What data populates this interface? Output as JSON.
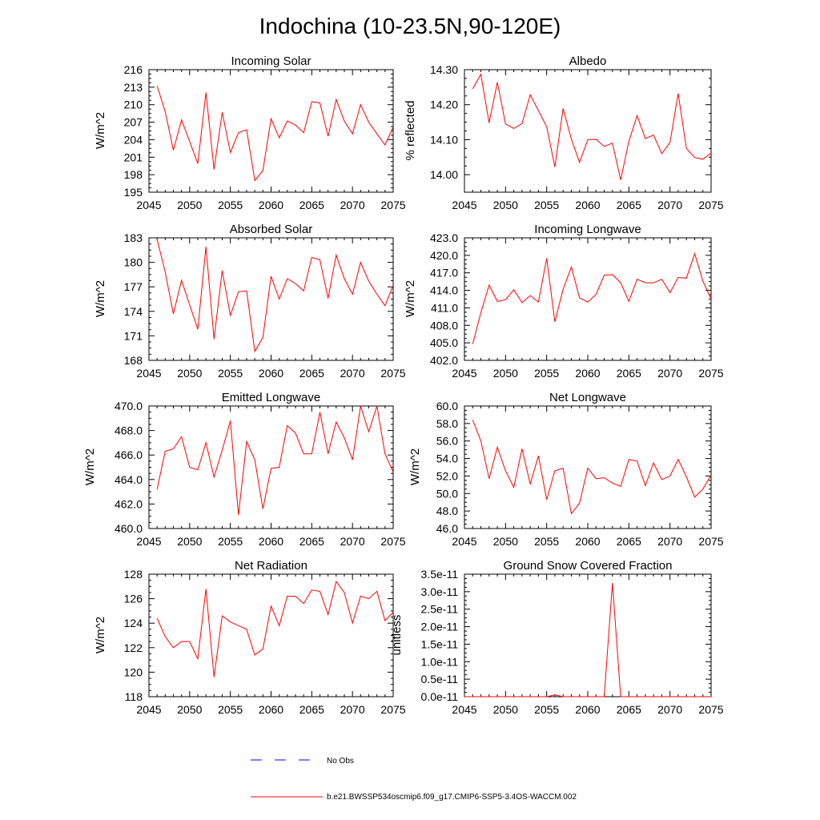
{
  "title": "Indochina (10-23.5N,90-120E)",
  "legend": {
    "obs_label": "No Obs",
    "obs_color": "#0000ff",
    "model_label": "b.e21.BWSSP534oscmip6.f09_g17.CMIP6-SSP5-3.4OS-WACCM.002",
    "model_color": "#ff0000"
  },
  "chart_data": [
    {
      "type": "line",
      "title": "Incoming Solar",
      "ylabel": "W/m^2",
      "xlim": [
        2045,
        2075
      ],
      "ylim": [
        195,
        216
      ],
      "xticks": [
        2045,
        2050,
        2055,
        2060,
        2065,
        2070,
        2075
      ],
      "xtick_labels": [
        "2045",
        "2050",
        "2055",
        "2060",
        "2065",
        "2070",
        "2075"
      ],
      "yticks": [
        195,
        198,
        201,
        204,
        207,
        210,
        213,
        216
      ],
      "ytick_labels": [
        "195",
        "198",
        "201",
        "204",
        "207",
        "210",
        "213",
        "216"
      ],
      "x": [
        2046,
        2047,
        2048,
        2049,
        2050,
        2051,
        2052,
        2053,
        2054,
        2055,
        2056,
        2057,
        2058,
        2059,
        2060,
        2061,
        2062,
        2063,
        2064,
        2065,
        2066,
        2067,
        2068,
        2069,
        2070,
        2071,
        2072,
        2073,
        2074,
        2075
      ],
      "series": [
        {
          "name": "b.e21.BWSSP534oscmip6.f09_g17.CMIP6-SSP5-3.4OS-WACCM.002",
          "values": [
            213.2,
            208.8,
            202.2,
            207.4,
            203.7,
            199.9,
            212.1,
            198.9,
            208.7,
            201.8,
            205.2,
            205.7,
            197.0,
            198.7,
            207.6,
            204.3,
            207.2,
            206.5,
            205.2,
            210.5,
            210.3,
            204.6,
            210.9,
            207.2,
            205.0,
            210.0,
            207.0,
            205.0,
            203.1,
            206.2
          ]
        }
      ]
    },
    {
      "type": "line",
      "title": "Albedo",
      "ylabel": "% reflected",
      "xlim": [
        2045,
        2075
      ],
      "ylim": [
        13.95,
        14.3
      ],
      "xticks": [
        2045,
        2050,
        2055,
        2060,
        2065,
        2070,
        2075
      ],
      "xtick_labels": [
        "2045",
        "2050",
        "2055",
        "2060",
        "2065",
        "2070",
        "2075"
      ],
      "yticks": [
        14.0,
        14.1,
        14.2,
        14.3
      ],
      "ytick_labels": [
        "14.00",
        "14.10",
        "14.20",
        "14.30"
      ],
      "x": [
        2046,
        2047,
        2048,
        2049,
        2050,
        2051,
        2052,
        2053,
        2054,
        2055,
        2056,
        2057,
        2058,
        2059,
        2060,
        2061,
        2062,
        2063,
        2064,
        2065,
        2066,
        2067,
        2068,
        2069,
        2070,
        2071,
        2072,
        2073,
        2074,
        2075
      ],
      "series": [
        {
          "name": "b.e21.BWSSP534oscmip6.f09_g17.CMIP6-SSP5-3.4OS-WACCM.002",
          "values": [
            14.245,
            14.287,
            14.148,
            14.264,
            14.145,
            14.132,
            14.146,
            14.228,
            14.183,
            14.137,
            14.022,
            14.189,
            14.102,
            14.035,
            14.1,
            14.101,
            14.081,
            14.09,
            13.985,
            14.095,
            14.169,
            14.103,
            14.113,
            14.06,
            14.092,
            14.232,
            14.075,
            14.049,
            14.044,
            14.062
          ]
        }
      ]
    },
    {
      "type": "line",
      "title": "Absorbed Solar",
      "ylabel": "W/m^2",
      "xlim": [
        2045,
        2075
      ],
      "ylim": [
        168,
        183
      ],
      "xticks": [
        2045,
        2050,
        2055,
        2060,
        2065,
        2070,
        2075
      ],
      "xtick_labels": [
        "2045",
        "2050",
        "2055",
        "2060",
        "2065",
        "2070",
        "2075"
      ],
      "yticks": [
        168,
        171,
        174,
        177,
        180,
        183
      ],
      "ytick_labels": [
        "168",
        "171",
        "174",
        "177",
        "180",
        "183"
      ],
      "x": [
        2046,
        2047,
        2048,
        2049,
        2050,
        2051,
        2052,
        2053,
        2054,
        2055,
        2056,
        2057,
        2058,
        2059,
        2060,
        2061,
        2062,
        2063,
        2064,
        2065,
        2066,
        2067,
        2068,
        2069,
        2070,
        2071,
        2072,
        2073,
        2074,
        2075
      ],
      "series": [
        {
          "name": "b.e21.BWSSP534oscmip6.f09_g17.CMIP6-SSP5-3.4OS-WACCM.002",
          "values": [
            182.8,
            178.8,
            173.7,
            177.8,
            174.8,
            171.8,
            181.9,
            170.6,
            179.0,
            173.5,
            176.4,
            176.5,
            169.1,
            170.8,
            178.3,
            175.5,
            178.0,
            177.4,
            176.5,
            180.6,
            180.3,
            175.6,
            180.9,
            178.0,
            176.1,
            180.0,
            177.7,
            176.1,
            174.7,
            177.2
          ]
        }
      ]
    },
    {
      "type": "line",
      "title": "Incoming Longwave",
      "ylabel": "W/m^2",
      "xlim": [
        2045,
        2075
      ],
      "ylim": [
        402.0,
        423.0
      ],
      "xticks": [
        2045,
        2050,
        2055,
        2060,
        2065,
        2070,
        2075
      ],
      "xtick_labels": [
        "2045",
        "2050",
        "2055",
        "2060",
        "2065",
        "2070",
        "2075"
      ],
      "yticks": [
        402,
        405,
        408,
        411,
        414,
        417,
        420,
        423
      ],
      "ytick_labels": [
        "402.0",
        "405.0",
        "408.0",
        "411.0",
        "414.0",
        "417.0",
        "420.0",
        "423.0"
      ],
      "x": [
        2046,
        2047,
        2048,
        2049,
        2050,
        2051,
        2052,
        2053,
        2054,
        2055,
        2056,
        2057,
        2058,
        2059,
        2060,
        2061,
        2062,
        2063,
        2064,
        2065,
        2066,
        2067,
        2068,
        2069,
        2070,
        2071,
        2072,
        2073,
        2074,
        2075
      ],
      "series": [
        {
          "name": "b.e21.BWSSP534oscmip6.f09_g17.CMIP6-SSP5-3.4OS-WACCM.002",
          "values": [
            404.8,
            410.2,
            414.9,
            412.1,
            412.4,
            414.1,
            411.9,
            413.1,
            412.0,
            419.5,
            408.6,
            414.2,
            418.0,
            412.7,
            412.0,
            413.3,
            416.6,
            416.7,
            415.3,
            412.1,
            415.9,
            415.3,
            415.3,
            415.9,
            413.6,
            416.2,
            416.1,
            420.3,
            415.6,
            412.5
          ]
        }
      ]
    },
    {
      "type": "line",
      "title": "Emitted Longwave",
      "ylabel": "W/m^2",
      "xlim": [
        2045,
        2075
      ],
      "ylim": [
        460.0,
        470.0
      ],
      "xticks": [
        2045,
        2050,
        2055,
        2060,
        2065,
        2070,
        2075
      ],
      "xtick_labels": [
        "2045",
        "2050",
        "2055",
        "2060",
        "2065",
        "2070",
        "2075"
      ],
      "yticks": [
        460,
        462,
        464,
        466,
        468,
        470
      ],
      "ytick_labels": [
        "460.0",
        "462.0",
        "464.0",
        "466.0",
        "468.0",
        "470.0"
      ],
      "x": [
        2046,
        2047,
        2048,
        2049,
        2050,
        2051,
        2052,
        2053,
        2054,
        2055,
        2056,
        2057,
        2058,
        2059,
        2060,
        2061,
        2062,
        2063,
        2064,
        2065,
        2066,
        2067,
        2068,
        2069,
        2070,
        2071,
        2072,
        2073,
        2074,
        2075
      ],
      "series": [
        {
          "name": "b.e21.BWSSP534oscmip6.f09_g17.CMIP6-SSP5-3.4OS-WACCM.002",
          "values": [
            463.2,
            466.3,
            466.5,
            467.5,
            465.0,
            464.8,
            467.0,
            464.2,
            466.4,
            468.8,
            461.1,
            467.1,
            465.6,
            461.6,
            464.9,
            465.0,
            468.4,
            467.8,
            466.1,
            466.1,
            469.5,
            466.1,
            468.7,
            467.4,
            465.6,
            470.0,
            467.9,
            470.0,
            466.1,
            464.6
          ]
        }
      ]
    },
    {
      "type": "line",
      "title": "Net Longwave",
      "ylabel": "W/m^2",
      "xlim": [
        2045,
        2075
      ],
      "ylim": [
        46.0,
        60.0
      ],
      "xticks": [
        2045,
        2050,
        2055,
        2060,
        2065,
        2070,
        2075
      ],
      "xtick_labels": [
        "2045",
        "2050",
        "2055",
        "2060",
        "2065",
        "2070",
        "2075"
      ],
      "yticks": [
        46,
        48,
        50,
        52,
        54,
        56,
        58,
        60
      ],
      "ytick_labels": [
        "46.0",
        "48.0",
        "50.0",
        "52.0",
        "54.0",
        "56.0",
        "58.0",
        "60.0"
      ],
      "x": [
        2046,
        2047,
        2048,
        2049,
        2050,
        2051,
        2052,
        2053,
        2054,
        2055,
        2056,
        2057,
        2058,
        2059,
        2060,
        2061,
        2062,
        2063,
        2064,
        2065,
        2066,
        2067,
        2068,
        2069,
        2070,
        2071,
        2072,
        2073,
        2074,
        2075
      ],
      "series": [
        {
          "name": "b.e21.BWSSP534oscmip6.f09_g17.CMIP6-SSP5-3.4OS-WACCM.002",
          "values": [
            58.4,
            56.0,
            51.7,
            55.3,
            52.6,
            50.7,
            55.1,
            51.1,
            54.3,
            49.3,
            52.6,
            52.9,
            47.7,
            48.9,
            52.9,
            51.7,
            51.8,
            51.2,
            50.8,
            53.9,
            53.7,
            50.9,
            53.5,
            51.6,
            52.0,
            53.9,
            51.9,
            49.6,
            50.5,
            52.1
          ]
        }
      ]
    },
    {
      "type": "line",
      "title": "Net Radiation",
      "ylabel": "W/m^2",
      "xlim": [
        2045,
        2075
      ],
      "ylim": [
        118,
        128
      ],
      "xticks": [
        2045,
        2050,
        2055,
        2060,
        2065,
        2070,
        2075
      ],
      "xtick_labels": [
        "2045",
        "2050",
        "2055",
        "2060",
        "2065",
        "2070",
        "2075"
      ],
      "yticks": [
        118,
        120,
        122,
        124,
        126,
        128
      ],
      "ytick_labels": [
        "118",
        "120",
        "122",
        "124",
        "126",
        "128"
      ],
      "x": [
        2046,
        2047,
        2048,
        2049,
        2050,
        2051,
        2052,
        2053,
        2054,
        2055,
        2056,
        2057,
        2058,
        2059,
        2060,
        2061,
        2062,
        2063,
        2064,
        2065,
        2066,
        2067,
        2068,
        2069,
        2070,
        2071,
        2072,
        2073,
        2074,
        2075
      ],
      "series": [
        {
          "name": "b.e21.BWSSP534oscmip6.f09_g17.CMIP6-SSP5-3.4OS-WACCM.002",
          "values": [
            124.4,
            122.9,
            122.0,
            122.5,
            122.5,
            121.1,
            126.8,
            119.6,
            124.6,
            124.1,
            123.8,
            123.5,
            121.4,
            121.9,
            125.4,
            123.8,
            126.2,
            126.2,
            125.6,
            126.7,
            126.6,
            124.7,
            127.4,
            126.5,
            124.0,
            126.2,
            126.0,
            126.6,
            124.2,
            124.9
          ]
        }
      ]
    },
    {
      "type": "line",
      "title": "Ground Snow Covered Fraction",
      "ylabel": "unitless",
      "xlim": [
        2045,
        2075
      ],
      "ylim": [
        0,
        3.5e-11
      ],
      "xticks": [
        2045,
        2050,
        2055,
        2060,
        2065,
        2070,
        2075
      ],
      "xtick_labels": [
        "2045",
        "2050",
        "2055",
        "2060",
        "2065",
        "2070",
        "2075"
      ],
      "yticks": [
        0,
        5e-12,
        1e-11,
        1.5e-11,
        2e-11,
        2.5e-11,
        3e-11,
        3.5e-11
      ],
      "ytick_labels": [
        "0.0e-11",
        "0.5e-11",
        "1.0e-11",
        "1.5e-11",
        "2.0e-11",
        "2.5e-11",
        "3.0e-11",
        "3.5e-11"
      ],
      "x": [
        2045,
        2046,
        2047,
        2048,
        2049,
        2050,
        2051,
        2052,
        2053,
        2054,
        2055,
        2056,
        2057,
        2058,
        2059,
        2060,
        2061,
        2062,
        2063,
        2064,
        2065,
        2066,
        2067,
        2068,
        2069,
        2070,
        2071,
        2072,
        2073,
        2074,
        2075
      ],
      "series": [
        {
          "name": "b.e21.BWSSP534oscmip6.f09_g17.CMIP6-SSP5-3.4OS-WACCM.002",
          "values": [
            0,
            0,
            0,
            0,
            0,
            0,
            0,
            0,
            0,
            0,
            0,
            5e-13,
            0,
            0,
            0,
            0,
            0,
            0,
            3.25e-11,
            0,
            0,
            0,
            0,
            0,
            0,
            0,
            0,
            0,
            0,
            0,
            0
          ]
        }
      ]
    }
  ]
}
